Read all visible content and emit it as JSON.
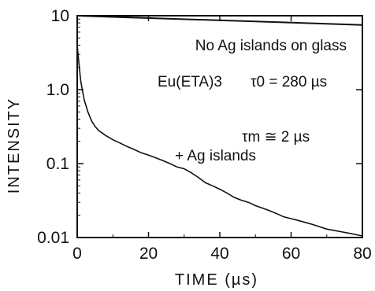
{
  "chart_data": {
    "type": "line",
    "xlabel": "TIME (µs)",
    "ylabel": "INTENSITY",
    "xlim": [
      0,
      80
    ],
    "ylim": [
      0.01,
      10
    ],
    "yscale": "log",
    "grid": false,
    "colors": {
      "line": "#111111",
      "axis": "#111111"
    },
    "x_ticks": [
      {
        "value": 0,
        "label": "0"
      },
      {
        "value": 20,
        "label": "20"
      },
      {
        "value": 40,
        "label": "40"
      },
      {
        "value": 60,
        "label": "60"
      },
      {
        "value": 80,
        "label": "80"
      }
    ],
    "y_ticks": [
      {
        "value": 10,
        "label": "10"
      },
      {
        "value": 1,
        "label": "1.0"
      },
      {
        "value": 0.1,
        "label": "0.1"
      },
      {
        "value": 0.01,
        "label": "0.01"
      }
    ],
    "annotations": {
      "glass_label": "No Ag islands on glass",
      "compound": "Eu(ETA)3",
      "tau0": "τ0 = 280 µs",
      "taum": "τm ≅ 2 µs",
      "islands_label": "+ Ag islands"
    },
    "series": [
      {
        "x": [
          0,
          80
        ],
        "y": [
          10,
          7.5
        ]
      },
      {
        "x": [
          0,
          0.5,
          1,
          1.5,
          2,
          3,
          4,
          5,
          6,
          8,
          10,
          12,
          14,
          16,
          18,
          20,
          22,
          24,
          26,
          28,
          30,
          32,
          34,
          36,
          38,
          40,
          42,
          44,
          46,
          48,
          50,
          52,
          54,
          56,
          58,
          60,
          62,
          64,
          66,
          68,
          70,
          72,
          74,
          76,
          78,
          80
        ],
        "y": [
          4.0,
          2.2,
          1.3,
          0.95,
          0.72,
          0.5,
          0.38,
          0.32,
          0.28,
          0.24,
          0.21,
          0.19,
          0.17,
          0.155,
          0.14,
          0.13,
          0.12,
          0.11,
          0.1,
          0.09,
          0.085,
          0.075,
          0.065,
          0.055,
          0.05,
          0.045,
          0.04,
          0.035,
          0.032,
          0.03,
          0.027,
          0.025,
          0.023,
          0.021,
          0.019,
          0.018,
          0.017,
          0.016,
          0.015,
          0.014,
          0.013,
          0.0125,
          0.012,
          0.0115,
          0.011,
          0.0105
        ]
      }
    ]
  }
}
